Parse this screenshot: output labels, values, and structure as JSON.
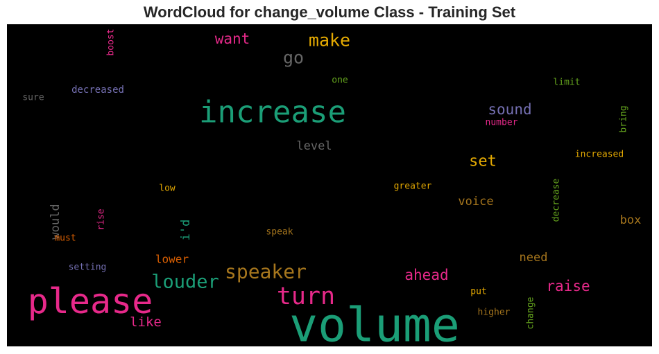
{
  "chart_data": {
    "type": "wordcloud",
    "title": "WordCloud for change_volume Class - Training Set",
    "background": "#000000",
    "words": [
      {
        "text": "volume",
        "color": "#1b9e77",
        "size": 6,
        "orientation": "horizontal"
      },
      {
        "text": "please",
        "color": "#e7298a",
        "size": 5,
        "orientation": "horizontal"
      },
      {
        "text": "increase",
        "color": "#1b9e77",
        "size": 5,
        "orientation": "horizontal"
      },
      {
        "text": "turn",
        "color": "#e7298a",
        "size": 4,
        "orientation": "horizontal"
      },
      {
        "text": "speaker",
        "color": "#a6761d",
        "size": 4,
        "orientation": "horizontal"
      },
      {
        "text": "louder",
        "color": "#1b9e77",
        "size": 4,
        "orientation": "horizontal"
      },
      {
        "text": "make",
        "color": "#e6ab02",
        "size": 3,
        "orientation": "horizontal"
      },
      {
        "text": "go",
        "color": "#666666",
        "size": 3,
        "orientation": "horizontal"
      },
      {
        "text": "want",
        "color": "#e7298a",
        "size": 3,
        "orientation": "horizontal"
      },
      {
        "text": "sound",
        "color": "#7570b3",
        "size": 3,
        "orientation": "horizontal"
      },
      {
        "text": "set",
        "color": "#e6ab02",
        "size": 3,
        "orientation": "horizontal"
      },
      {
        "text": "ahead",
        "color": "#e7298a",
        "size": 3,
        "orientation": "horizontal"
      },
      {
        "text": "raise",
        "color": "#e7298a",
        "size": 3,
        "orientation": "horizontal"
      },
      {
        "text": "like",
        "color": "#e7298a",
        "size": 2,
        "orientation": "horizontal"
      },
      {
        "text": "level",
        "color": "#666666",
        "size": 2,
        "orientation": "horizontal"
      },
      {
        "text": "voice",
        "color": "#a6761d",
        "size": 2,
        "orientation": "horizontal"
      },
      {
        "text": "box",
        "color": "#a6761d",
        "size": 2,
        "orientation": "horizontal"
      },
      {
        "text": "need",
        "color": "#a6761d",
        "size": 2,
        "orientation": "horizontal"
      },
      {
        "text": "lower",
        "color": "#d95f02",
        "size": 2,
        "orientation": "horizontal"
      },
      {
        "text": "would",
        "color": "#666666",
        "size": 2,
        "orientation": "vertical"
      },
      {
        "text": "i'd",
        "color": "#1b9e77",
        "size": 2,
        "orientation": "vertical"
      },
      {
        "text": "decreased",
        "color": "#7570b3",
        "size": 1,
        "orientation": "horizontal"
      },
      {
        "text": "sure",
        "color": "#666666",
        "size": 1,
        "orientation": "horizontal"
      },
      {
        "text": "boost",
        "color": "#e7298a",
        "size": 1,
        "orientation": "vertical"
      },
      {
        "text": "one",
        "color": "#66a61e",
        "size": 1,
        "orientation": "horizontal"
      },
      {
        "text": "limit",
        "color": "#66a61e",
        "size": 1,
        "orientation": "horizontal"
      },
      {
        "text": "number",
        "color": "#e7298a",
        "size": 1,
        "orientation": "horizontal"
      },
      {
        "text": "bring",
        "color": "#66a61e",
        "size": 1,
        "orientation": "vertical"
      },
      {
        "text": "increased",
        "color": "#e6ab02",
        "size": 1,
        "orientation": "horizontal"
      },
      {
        "text": "low",
        "color": "#e6ab02",
        "size": 1,
        "orientation": "horizontal"
      },
      {
        "text": "greater",
        "color": "#e6ab02",
        "size": 1,
        "orientation": "horizontal"
      },
      {
        "text": "decrease",
        "color": "#66a61e",
        "size": 1,
        "orientation": "vertical"
      },
      {
        "text": "rise",
        "color": "#e7298a",
        "size": 1,
        "orientation": "vertical"
      },
      {
        "text": "must",
        "color": "#d95f02",
        "size": 1,
        "orientation": "horizontal"
      },
      {
        "text": "speak",
        "color": "#a6761d",
        "size": 1,
        "orientation": "horizontal"
      },
      {
        "text": "setting",
        "color": "#7570b3",
        "size": 1,
        "orientation": "horizontal"
      },
      {
        "text": "put",
        "color": "#e6ab02",
        "size": 1,
        "orientation": "horizontal"
      },
      {
        "text": "higher",
        "color": "#a6761d",
        "size": 1,
        "orientation": "horizontal"
      },
      {
        "text": "change",
        "color": "#66a61e",
        "size": 1,
        "orientation": "vertical"
      }
    ]
  }
}
